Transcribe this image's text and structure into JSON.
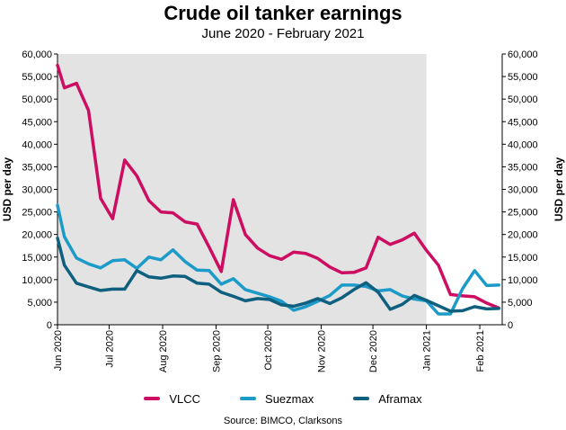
{
  "title": "Crude oil tanker earnings",
  "subtitle": "June 2020 - February 2021",
  "source": "Source: BIMCO, Clarksons",
  "chart_data": {
    "type": "line",
    "title": "Crude oil tanker earnings",
    "subtitle": "June 2020 - February 2021",
    "ylabel": "USD per day",
    "ylabel_right": "USD per day",
    "ylim": [
      0,
      60000
    ],
    "y_ticks": [
      0,
      5000,
      10000,
      15000,
      20000,
      25000,
      30000,
      35000,
      40000,
      45000,
      50000,
      55000,
      60000
    ],
    "y_tick_labels": [
      "0",
      "5,000",
      "10,000",
      "15,000",
      "20,000",
      "25,000",
      "30,000",
      "35,000",
      "40,000",
      "45,000",
      "50,000",
      "55,000",
      "60,000"
    ],
    "xlim": [
      "2020-06-01",
      "2021-02-14"
    ],
    "x_ticks": [
      "2020-06-01",
      "2020-07-01",
      "2020-08-01",
      "2020-09-01",
      "2020-10-01",
      "2020-11-01",
      "2020-12-01",
      "2021-01-01",
      "2021-02-01"
    ],
    "x_tick_labels": [
      "Jun 2020",
      "Jul 2020",
      "Aug 2020",
      "Sep 2020",
      "Oct 2020",
      "Nov 2020",
      "Dec 2020",
      "Jan 2021",
      "Feb 2021"
    ],
    "shaded_region": [
      "2020-06-01",
      "2021-01-01"
    ],
    "shaded_color": "#e3e3e3",
    "grid": false,
    "legend_position": "bottom",
    "series": [
      {
        "name": "VLCC",
        "color": "#cc0d62",
        "points": [
          [
            "2020-06-01",
            57500
          ],
          [
            "2020-06-05",
            52500
          ],
          [
            "2020-06-12",
            53500
          ],
          [
            "2020-06-19",
            47500
          ],
          [
            "2020-06-26",
            28000
          ],
          [
            "2020-07-03",
            23500
          ],
          [
            "2020-07-10",
            36500
          ],
          [
            "2020-07-17",
            33000
          ],
          [
            "2020-07-24",
            27500
          ],
          [
            "2020-07-31",
            25000
          ],
          [
            "2020-08-07",
            24800
          ],
          [
            "2020-08-14",
            22800
          ],
          [
            "2020-08-21",
            22300
          ],
          [
            "2020-08-28",
            17200
          ],
          [
            "2020-09-04",
            11800
          ],
          [
            "2020-09-11",
            27700
          ],
          [
            "2020-09-18",
            20000
          ],
          [
            "2020-09-25",
            17000
          ],
          [
            "2020-10-02",
            15300
          ],
          [
            "2020-10-09",
            14500
          ],
          [
            "2020-10-16",
            16100
          ],
          [
            "2020-10-23",
            15800
          ],
          [
            "2020-10-30",
            14700
          ],
          [
            "2020-11-06",
            12800
          ],
          [
            "2020-11-13",
            11500
          ],
          [
            "2020-11-20",
            11600
          ],
          [
            "2020-11-27",
            12600
          ],
          [
            "2020-12-04",
            19400
          ],
          [
            "2020-12-11",
            17800
          ],
          [
            "2020-12-18",
            18800
          ],
          [
            "2020-12-25",
            20300
          ],
          [
            "2021-01-01",
            16500
          ],
          [
            "2021-01-08",
            13200
          ],
          [
            "2021-01-15",
            6700
          ],
          [
            "2021-01-22",
            6400
          ],
          [
            "2021-01-29",
            6200
          ],
          [
            "2021-02-05",
            4800
          ],
          [
            "2021-02-12",
            3700
          ]
        ]
      },
      {
        "name": "Suezmax",
        "color": "#1c9bc8",
        "points": [
          [
            "2020-06-01",
            26500
          ],
          [
            "2020-06-05",
            19500
          ],
          [
            "2020-06-12",
            14800
          ],
          [
            "2020-06-19",
            13500
          ],
          [
            "2020-06-26",
            12600
          ],
          [
            "2020-07-03",
            14200
          ],
          [
            "2020-07-10",
            14400
          ],
          [
            "2020-07-17",
            12500
          ],
          [
            "2020-07-24",
            15000
          ],
          [
            "2020-07-31",
            14400
          ],
          [
            "2020-08-07",
            16600
          ],
          [
            "2020-08-14",
            14000
          ],
          [
            "2020-08-21",
            12100
          ],
          [
            "2020-08-28",
            12000
          ],
          [
            "2020-09-04",
            9000
          ],
          [
            "2020-09-11",
            10200
          ],
          [
            "2020-09-18",
            7800
          ],
          [
            "2020-09-25",
            7000
          ],
          [
            "2020-10-02",
            6200
          ],
          [
            "2020-10-09",
            5200
          ],
          [
            "2020-10-16",
            3200
          ],
          [
            "2020-10-23",
            4000
          ],
          [
            "2020-10-30",
            5200
          ],
          [
            "2020-11-06",
            6500
          ],
          [
            "2020-11-13",
            8800
          ],
          [
            "2020-11-20",
            8800
          ],
          [
            "2020-11-27",
            8500
          ],
          [
            "2020-12-04",
            7500
          ],
          [
            "2020-12-11",
            7800
          ],
          [
            "2020-12-18",
            6400
          ],
          [
            "2020-12-25",
            5700
          ],
          [
            "2021-01-01",
            5300
          ],
          [
            "2021-01-08",
            2400
          ],
          [
            "2021-01-15",
            2400
          ],
          [
            "2021-01-22",
            8000
          ],
          [
            "2021-01-29",
            12000
          ],
          [
            "2021-02-05",
            8700
          ],
          [
            "2021-02-12",
            8800
          ]
        ]
      },
      {
        "name": "Aframax",
        "color": "#0f5f7f",
        "points": [
          [
            "2020-06-01",
            19200
          ],
          [
            "2020-06-05",
            13200
          ],
          [
            "2020-06-12",
            9200
          ],
          [
            "2020-06-19",
            8400
          ],
          [
            "2020-06-26",
            7600
          ],
          [
            "2020-07-03",
            7900
          ],
          [
            "2020-07-10",
            7900
          ],
          [
            "2020-07-17",
            12000
          ],
          [
            "2020-07-24",
            10600
          ],
          [
            "2020-07-31",
            10300
          ],
          [
            "2020-08-07",
            10800
          ],
          [
            "2020-08-14",
            10700
          ],
          [
            "2020-08-21",
            9200
          ],
          [
            "2020-08-28",
            9000
          ],
          [
            "2020-09-04",
            7200
          ],
          [
            "2020-09-11",
            6300
          ],
          [
            "2020-09-18",
            5300
          ],
          [
            "2020-09-25",
            5800
          ],
          [
            "2020-10-02",
            5600
          ],
          [
            "2020-10-09",
            4400
          ],
          [
            "2020-10-16",
            4100
          ],
          [
            "2020-10-23",
            4800
          ],
          [
            "2020-10-30",
            5800
          ],
          [
            "2020-11-06",
            4700
          ],
          [
            "2020-11-13",
            6000
          ],
          [
            "2020-11-20",
            7800
          ],
          [
            "2020-11-27",
            9300
          ],
          [
            "2020-12-04",
            7200
          ],
          [
            "2020-12-11",
            3400
          ],
          [
            "2020-12-18",
            4500
          ],
          [
            "2020-12-25",
            6500
          ],
          [
            "2021-01-01",
            5400
          ],
          [
            "2021-01-08",
            4200
          ],
          [
            "2021-01-15",
            3000
          ],
          [
            "2021-01-22",
            3100
          ],
          [
            "2021-01-29",
            4000
          ],
          [
            "2021-02-05",
            3500
          ],
          [
            "2021-02-12",
            3600
          ]
        ]
      }
    ]
  }
}
